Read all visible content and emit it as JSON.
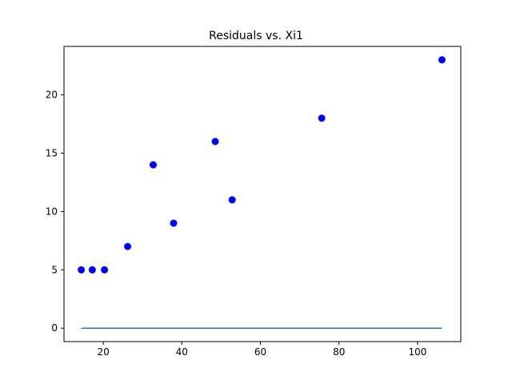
{
  "chart_data": {
    "type": "scatter",
    "title": "Residuals vs. Xi1",
    "xlabel": "",
    "ylabel": "",
    "xlim": [
      10,
      111
    ],
    "ylim": [
      -1.15,
      24.15
    ],
    "x_ticks": [
      20,
      40,
      60,
      80,
      100
    ],
    "y_ticks": [
      0,
      5,
      10,
      15,
      20
    ],
    "grid": false,
    "series": [
      {
        "kind": "scatter",
        "color": "#0000ff",
        "points": [
          {
            "x": 14.4,
            "y": 5
          },
          {
            "x": 17.2,
            "y": 5
          },
          {
            "x": 20.3,
            "y": 5
          },
          {
            "x": 26.2,
            "y": 7
          },
          {
            "x": 32.7,
            "y": 14
          },
          {
            "x": 37.9,
            "y": 9
          },
          {
            "x": 48.5,
            "y": 16
          },
          {
            "x": 52.8,
            "y": 11
          },
          {
            "x": 75.6,
            "y": 18
          },
          {
            "x": 106.2,
            "y": 23
          }
        ]
      },
      {
        "kind": "line",
        "color": "#1f77b4",
        "points": [
          {
            "x": 14.4,
            "y": 0
          },
          {
            "x": 106.2,
            "y": 0
          }
        ]
      }
    ]
  }
}
